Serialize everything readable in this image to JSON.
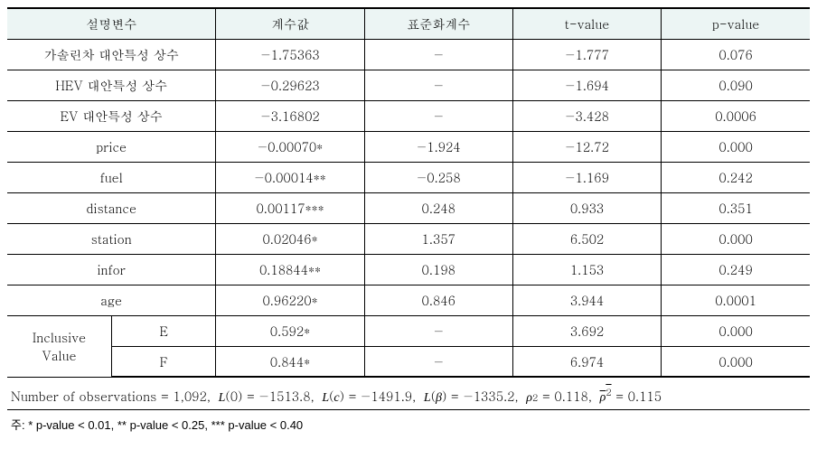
{
  "colors": {
    "header_bg": "#ecf5f4",
    "border": "#000000",
    "text": "#000000",
    "background": "#ffffff"
  },
  "columns": {
    "var": "설명변수",
    "coef": "계수값",
    "std": "표준화계수",
    "t": "t-value",
    "p": "p-value"
  },
  "rows": [
    {
      "label": "가솔린차 대안특성 상수",
      "coef": "−1.75363",
      "std": "−",
      "t": "−1.777",
      "p": "0.076"
    },
    {
      "label": "HEV 대안특성 상수",
      "coef": "−0.29623",
      "std": "−",
      "t": "−1.694",
      "p": "0.090"
    },
    {
      "label": "EV 대안특성 상수",
      "coef": "−3.16802",
      "std": "−",
      "t": "−3.428",
      "p": "0.0006"
    },
    {
      "label": "price",
      "coef": "−0.00070*",
      "std": "−1.924",
      "t": "−12.72",
      "p": "0.000"
    },
    {
      "label": "fuel",
      "coef": "−0.00014**",
      "std": "−0.258",
      "t": "−1.169",
      "p": "0.242"
    },
    {
      "label": "distance",
      "coef": "0.00117***",
      "std": "0.248",
      "t": "0.933",
      "p": "0.351"
    },
    {
      "label": "station",
      "coef": "0.02046*",
      "std": "1.357",
      "t": "6.502",
      "p": "0.000"
    },
    {
      "label": "infor",
      "coef": "0.18844**",
      "std": "0.198",
      "t": "1.153",
      "p": "0.249"
    },
    {
      "label": "age",
      "coef": "0.96220*",
      "std": "0.846",
      "t": "3.944",
      "p": "0.0001"
    }
  ],
  "iv": {
    "label": "Inclusive\nValue",
    "rows": [
      {
        "sub": "E",
        "coef": "0.592*",
        "std": "−",
        "t": "3.692",
        "p": "0.000"
      },
      {
        "sub": "F",
        "coef": "0.844*",
        "std": "−",
        "t": "6.974",
        "p": "0.000"
      }
    ]
  },
  "stats": {
    "nobs_label": "Number of observations",
    "nobs": "1,092",
    "L0": "−1513.8",
    "Lc": "−1491.9",
    "Lb": "−1335.2",
    "rho2": "0.118",
    "rho2bar": "0.115"
  },
  "note": {
    "prefix": "주:",
    "p1": "* p-value < 0.01,",
    "p2": "** p-value < 0.25,",
    "p3": "*** p-value < 0.40"
  }
}
